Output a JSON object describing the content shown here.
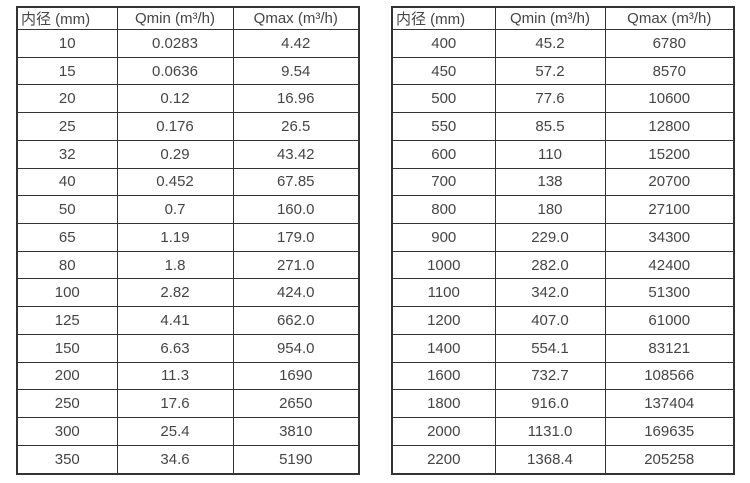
{
  "colors": {
    "border": "#333333",
    "text": "#454545",
    "background": "#ffffff"
  },
  "chart_data": [
    {
      "type": "table",
      "title": "",
      "columns": [
        "内径 (mm)",
        "Qmin (m³/h)",
        "Qmax (m³/h)"
      ],
      "rows": [
        [
          "10",
          "0.0283",
          "4.42"
        ],
        [
          "15",
          "0.0636",
          "9.54"
        ],
        [
          "20",
          "0.12",
          "16.96"
        ],
        [
          "25",
          "0.176",
          "26.5"
        ],
        [
          "32",
          "0.29",
          "43.42"
        ],
        [
          "40",
          "0.452",
          "67.85"
        ],
        [
          "50",
          "0.7",
          "160.0"
        ],
        [
          "65",
          "1.19",
          "179.0"
        ],
        [
          "80",
          "1.8",
          "271.0"
        ],
        [
          "100",
          "2.82",
          "424.0"
        ],
        [
          "125",
          "4.41",
          "662.0"
        ],
        [
          "150",
          "6.63",
          "954.0"
        ],
        [
          "200",
          "11.3",
          "1690"
        ],
        [
          "250",
          "17.6",
          "2650"
        ],
        [
          "300",
          "25.4",
          "3810"
        ],
        [
          "350",
          "34.6",
          "5190"
        ]
      ]
    },
    {
      "type": "table",
      "title": "",
      "columns": [
        "内径 (mm)",
        "Qmin (m³/h)",
        "Qmax (m³/h)"
      ],
      "rows": [
        [
          "400",
          "45.2",
          "6780"
        ],
        [
          "450",
          "57.2",
          "8570"
        ],
        [
          "500",
          "77.6",
          "10600"
        ],
        [
          "550",
          "85.5",
          "12800"
        ],
        [
          "600",
          "110",
          "15200"
        ],
        [
          "700",
          "138",
          "20700"
        ],
        [
          "800",
          "180",
          "27100"
        ],
        [
          "900",
          "229.0",
          "34300"
        ],
        [
          "1000",
          "282.0",
          "42400"
        ],
        [
          "1100",
          "342.0",
          "51300"
        ],
        [
          "1200",
          "407.0",
          "61000"
        ],
        [
          "1400",
          "554.1",
          "83121"
        ],
        [
          "1600",
          "732.7",
          "108566"
        ],
        [
          "1800",
          "916.0",
          "137404"
        ],
        [
          "2000",
          "1131.0",
          "169635"
        ],
        [
          "2200",
          "1368.4",
          "205258"
        ]
      ]
    }
  ]
}
